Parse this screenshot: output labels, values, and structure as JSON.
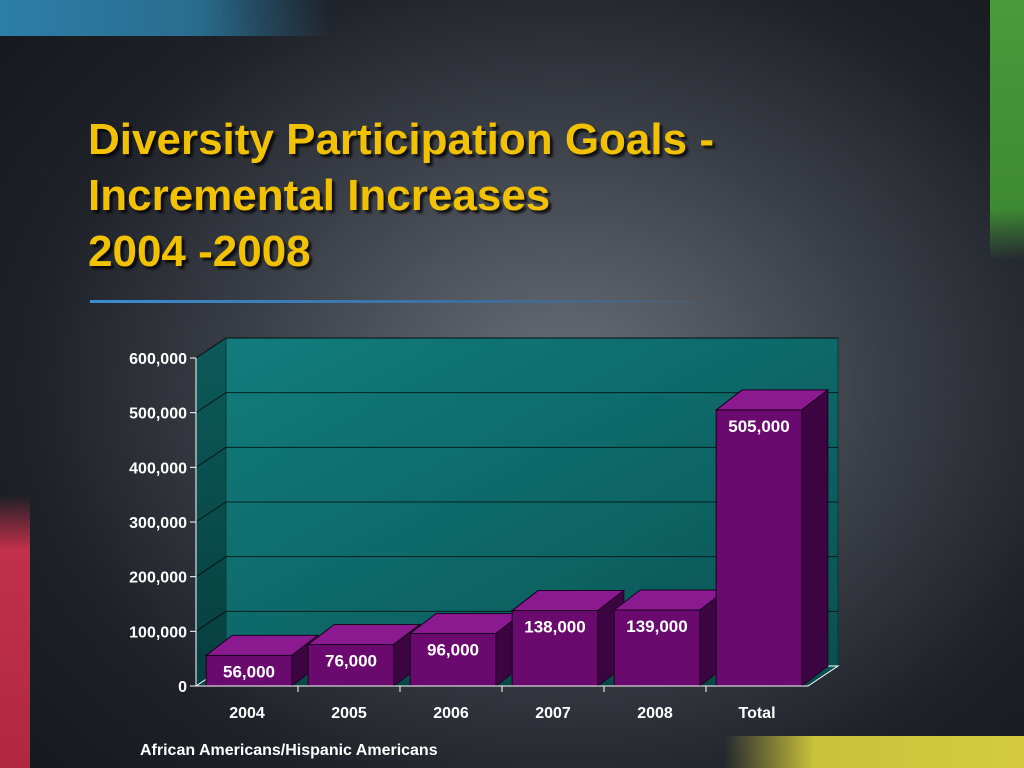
{
  "slide": {
    "title_lines": [
      "Diversity Participation Goals -",
      "Incremental Increases",
      "2004 -2008"
    ]
  },
  "chart_data": {
    "type": "bar",
    "title": "Diversity Participation Goals - Incremental Increases 2004 -2008",
    "categories": [
      "2004",
      "2005",
      "2006",
      "2007",
      "2008",
      "Total"
    ],
    "values": [
      56000,
      76000,
      96000,
      138000,
      139000,
      505000
    ],
    "data_labels": [
      "56,000",
      "76,000",
      "96,000",
      "138,000",
      "139,000",
      "505,000"
    ],
    "xlabel": "African Americans/Hispanic Americans",
    "ylabel": "",
    "ylim": [
      0,
      600000
    ],
    "yticks": [
      0,
      100000,
      200000,
      300000,
      400000,
      500000,
      600000
    ],
    "ytick_labels": [
      "0",
      "100,000",
      "200,000",
      "300,000",
      "400,000",
      "500,000",
      "600,000"
    ],
    "grid": true,
    "legend": "none",
    "colors": {
      "bar_front": "#6a0a6f",
      "bar_top": "#8b1a90",
      "bar_side": "#3d0442",
      "plot_wall": "#0f6e6e",
      "title": "#f2c200"
    }
  }
}
